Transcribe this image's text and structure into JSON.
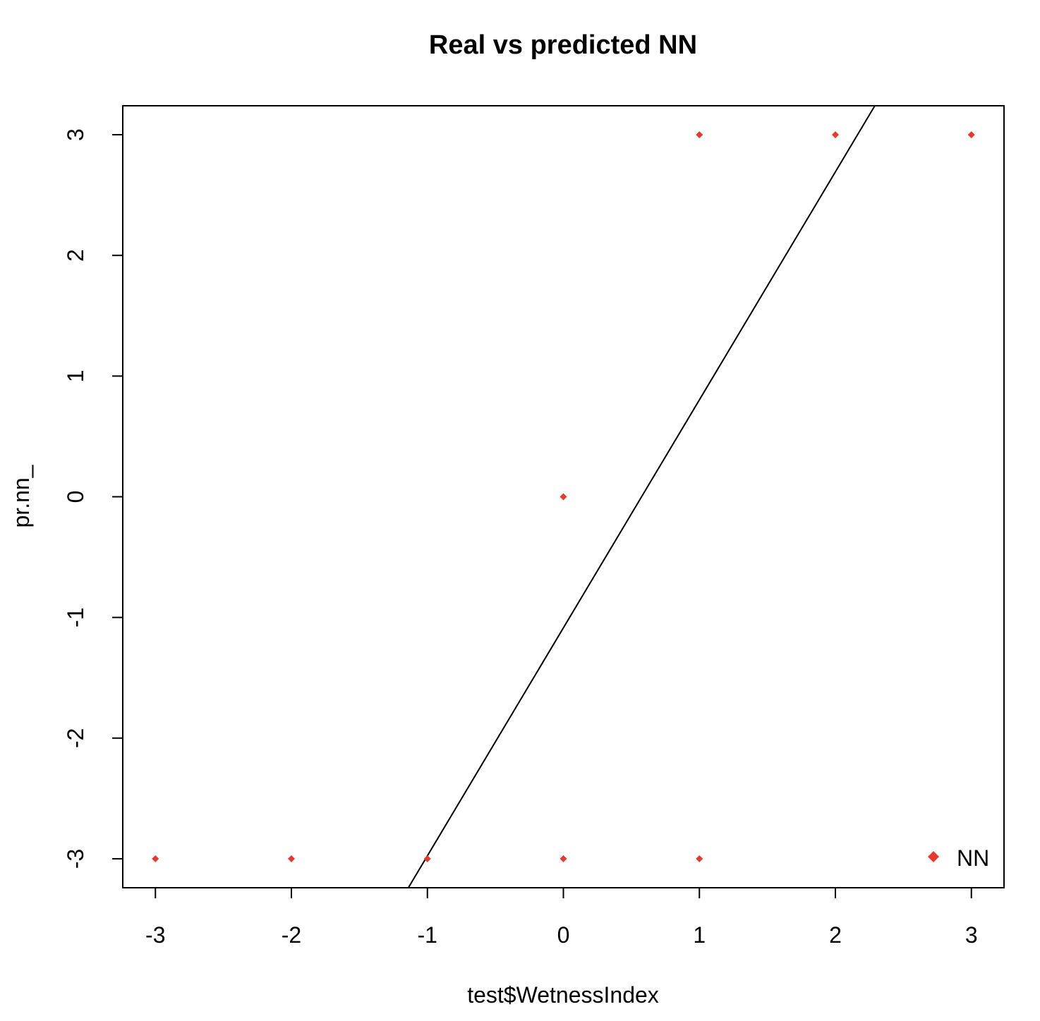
{
  "chart_data": {
    "type": "scatter",
    "title": "Real vs predicted NN",
    "xlabel": "test$WetnessIndex",
    "ylabel": "pr.nn_",
    "xlim": [
      -3.24,
      3.24
    ],
    "ylim": [
      -3.24,
      3.24
    ],
    "xticks": [
      -3,
      -2,
      -1,
      0,
      1,
      2,
      3
    ],
    "yticks": [
      -3,
      -2,
      -1,
      0,
      1,
      2,
      3
    ],
    "xtick_labels": [
      "-3",
      "-2",
      "-1",
      "0",
      "1",
      "2",
      "3"
    ],
    "ytick_labels": [
      "-3",
      "-2",
      "-1",
      "0",
      "1",
      "2",
      "3"
    ],
    "grid": false,
    "series": [
      {
        "name": "NN",
        "color": "#e8392e",
        "marker": "diamond",
        "points": [
          {
            "x": -3,
            "y": -3
          },
          {
            "x": -2,
            "y": -3
          },
          {
            "x": -1,
            "y": -3
          },
          {
            "x": 0,
            "y": -3
          },
          {
            "x": 1,
            "y": -3
          },
          {
            "x": 0,
            "y": 0
          },
          {
            "x": 1,
            "y": 3
          },
          {
            "x": 2,
            "y": 3
          },
          {
            "x": 3,
            "y": 3
          }
        ]
      }
    ],
    "fit_line": {
      "x1": -1.14,
      "y1": -3.24,
      "x2": 2.29,
      "y2": 3.24,
      "color": "#000000"
    },
    "legend": {
      "position": "bottom-right",
      "entries": [
        {
          "label": "NN",
          "color": "#e8392e",
          "marker": "diamond"
        }
      ]
    }
  }
}
